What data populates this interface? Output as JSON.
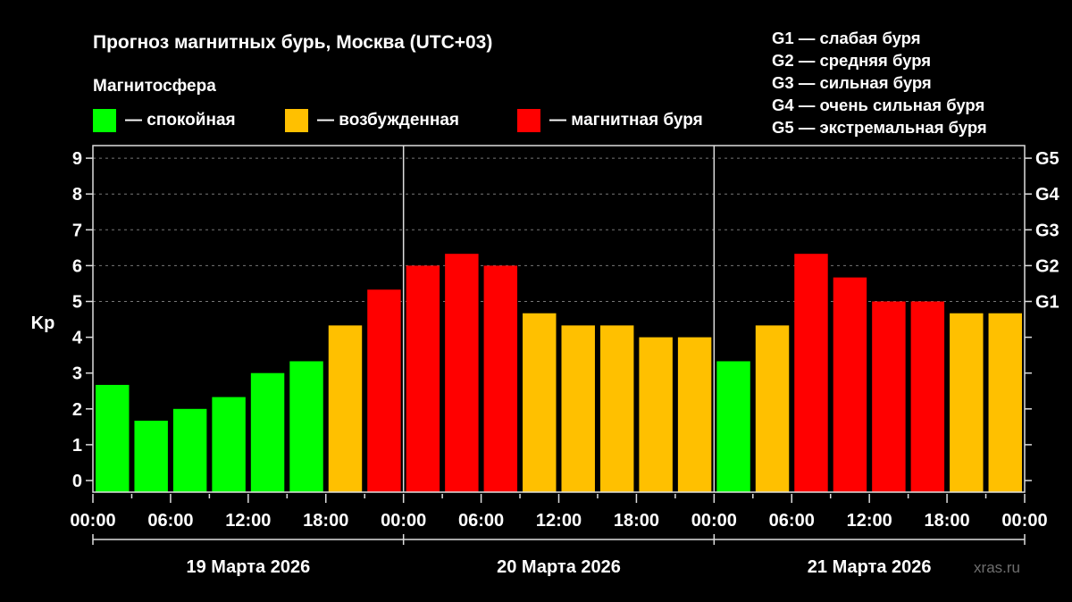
{
  "title": "Прогноз магнитных бурь, Москва (UTC+03)",
  "subtitle": "Магнитосфера",
  "legend": [
    {
      "label": "— спокойная",
      "color": "#00ff00"
    },
    {
      "label": "— возбужденная",
      "color": "#ffc000"
    },
    {
      "label": "— магнитная буря",
      "color": "#ff0000"
    }
  ],
  "g_scale": [
    "G1 — слабая буря",
    "G2 — средняя буря",
    "G3 — сильная буря",
    "G4 — очень сильная буря",
    "G5 — экстремальная буря"
  ],
  "watermark": "xras.ru",
  "chart_data": {
    "type": "bar",
    "title": "Прогноз магнитных бурь, Москва (UTC+03)",
    "ylabel": "Kp",
    "ylim": [
      0,
      9
    ],
    "yticks": [
      "0",
      "1",
      "2",
      "3",
      "4",
      "5",
      "6",
      "7",
      "8",
      "9"
    ],
    "right_ticks": [
      {
        "value": 5,
        "label": "G1"
      },
      {
        "value": 6,
        "label": "G2"
      },
      {
        "value": 7,
        "label": "G3"
      },
      {
        "value": 8,
        "label": "G4"
      },
      {
        "value": 9,
        "label": "G5"
      }
    ],
    "xtick_labels": [
      "00:00",
      "06:00",
      "12:00",
      "18:00",
      "00:00",
      "06:00",
      "12:00",
      "18:00",
      "00:00",
      "06:00",
      "12:00",
      "18:00",
      "00:00"
    ],
    "days": [
      "19 Марта 2026",
      "20 Марта 2026",
      "21 Марта 2026"
    ],
    "grid": true,
    "colors": {
      "quiet": "#00ff00",
      "active": "#ffc000",
      "storm": "#ff0000"
    },
    "values": [
      2.67,
      1.67,
      2.0,
      2.33,
      3.0,
      3.33,
      4.33,
      5.33,
      6.0,
      6.33,
      6.0,
      4.67,
      4.33,
      4.33,
      4.0,
      4.0,
      3.33,
      4.33,
      6.33,
      5.67,
      5.0,
      5.0,
      4.67,
      4.67
    ],
    "levels": [
      "quiet",
      "quiet",
      "quiet",
      "quiet",
      "quiet",
      "quiet",
      "active",
      "storm",
      "storm",
      "storm",
      "storm",
      "active",
      "active",
      "active",
      "active",
      "active",
      "quiet",
      "active",
      "storm",
      "storm",
      "storm",
      "storm",
      "active",
      "active"
    ]
  }
}
